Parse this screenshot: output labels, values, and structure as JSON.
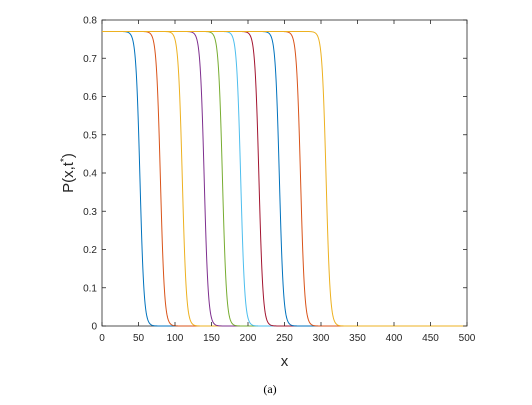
{
  "chart_data": {
    "type": "line",
    "title": "",
    "xlabel": "x",
    "ylabel": "P(x,t",
    "ylabel_superscript": "*",
    "ylabel_close": ")",
    "caption": "(a)",
    "xlim": [
      0,
      500
    ],
    "ylim": [
      0,
      0.8
    ],
    "xticks": [
      0,
      50,
      100,
      150,
      200,
      250,
      300,
      350,
      400,
      450,
      500
    ],
    "yticks": [
      0,
      0.1,
      0.2,
      0.3,
      0.4,
      0.5,
      0.6,
      0.7,
      0.8
    ],
    "xtick_labels": [
      "0",
      "50",
      "100",
      "150",
      "200",
      "250",
      "300",
      "350",
      "400",
      "450",
      "500"
    ],
    "ytick_labels": [
      "0",
      "0.1",
      "0.2",
      "0.3",
      "0.4",
      "0.5",
      "0.6",
      "0.7",
      "0.8"
    ],
    "grid": false,
    "legend": "none",
    "plateau": 0.77,
    "front_width": 2.8,
    "series": [
      {
        "front_x": 52,
        "color": "#0072BD"
      },
      {
        "front_x": 80,
        "color": "#D95319"
      },
      {
        "front_x": 110,
        "color": "#EDB120"
      },
      {
        "front_x": 140,
        "color": "#7E2F8E"
      },
      {
        "front_x": 165,
        "color": "#77AC30"
      },
      {
        "front_x": 190,
        "color": "#4DBEEE"
      },
      {
        "front_x": 215,
        "color": "#A2142F"
      },
      {
        "front_x": 243,
        "color": "#0072BD"
      },
      {
        "front_x": 272,
        "color": "#D95319"
      },
      {
        "front_x": 307,
        "color": "#EDB120"
      }
    ]
  }
}
